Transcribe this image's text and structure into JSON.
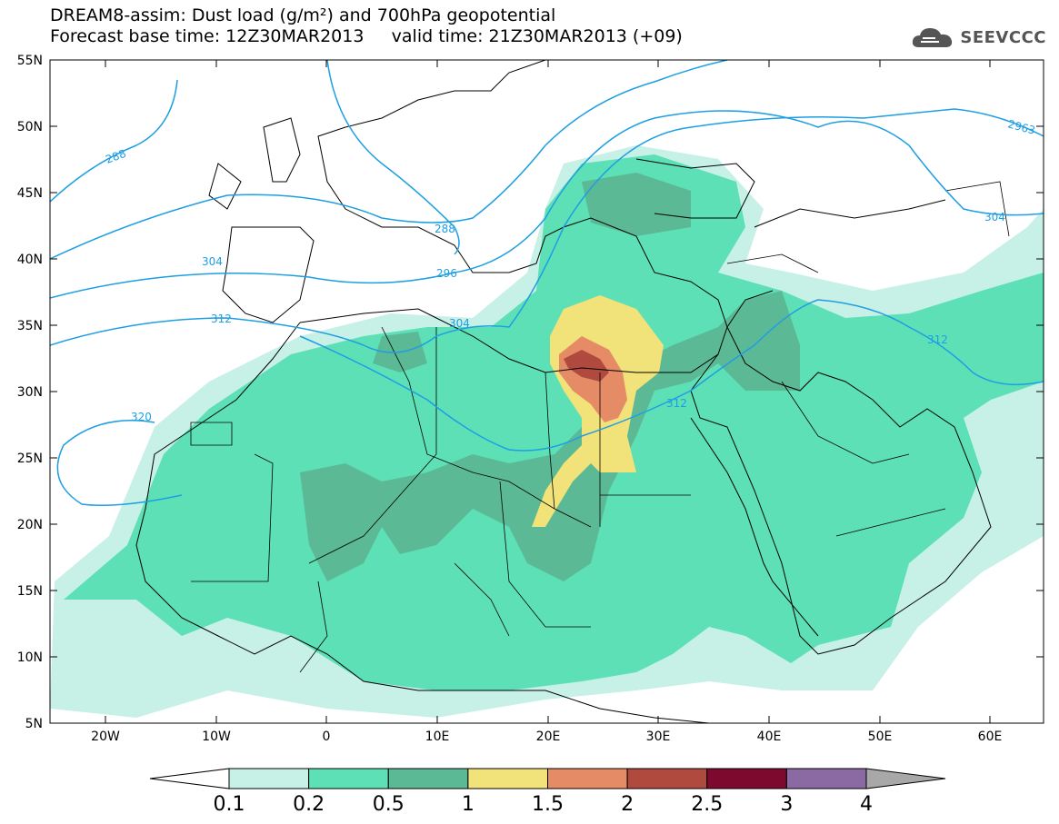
{
  "title": {
    "line1": "DREAM8-assim: Dust load (g/m²) and 700hPa geopotential",
    "line2": "Forecast base time: 12Z30MAR2013     valid time: 21Z30MAR2013 (+09)"
  },
  "logo": {
    "text": "SEEVCCC",
    "icon": "cloud-logo-icon"
  },
  "map": {
    "lat_labels": [
      "55N",
      "50N",
      "45N",
      "40N",
      "35N",
      "30N",
      "25N",
      "20N",
      "15N",
      "10N",
      "5N"
    ],
    "lon_labels": [
      "20W",
      "10W",
      "0",
      "10E",
      "20E",
      "30E",
      "40E",
      "50E",
      "60E"
    ],
    "contour_labels": [
      "288",
      "288",
      "296",
      "304",
      "304",
      "312",
      "312",
      "312",
      "320",
      "304",
      "2963"
    ]
  },
  "colorbar": {
    "colors": [
      "#ffffff",
      "#c7f0e7",
      "#5de0b6",
      "#5cb996",
      "#f2e27a",
      "#e58b66",
      "#b04a3f",
      "#7d0a2e",
      "#8b6aa3",
      "#a8a8a8"
    ],
    "labels": [
      "0.1",
      "0.2",
      "0.5",
      "1",
      "1.5",
      "2",
      "2.5",
      "3",
      "4"
    ]
  }
}
